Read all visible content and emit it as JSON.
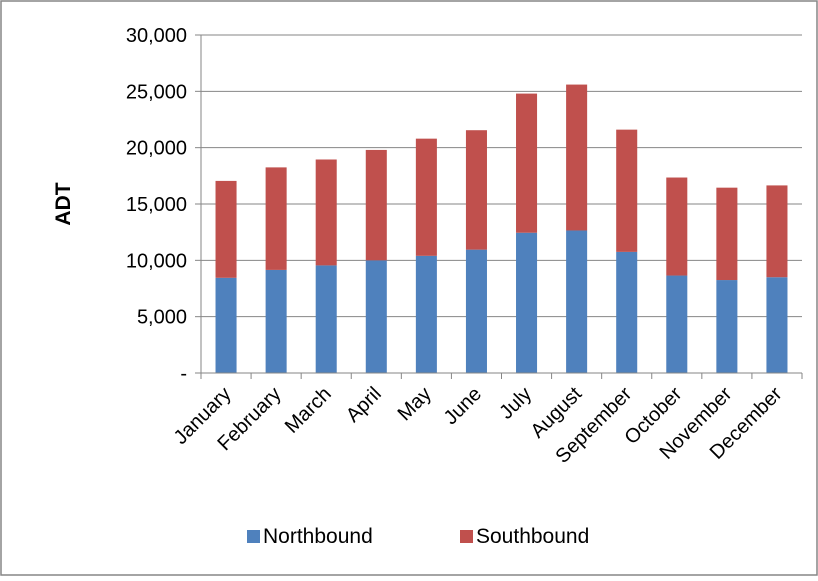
{
  "chart_data": {
    "type": "bar",
    "stacked": true,
    "ylabel": "ADT",
    "xlabel": "",
    "title": "",
    "ylim": [
      0,
      30000
    ],
    "y_ticks": [
      0,
      5000,
      10000,
      15000,
      20000,
      25000,
      30000
    ],
    "y_tick_labels": [
      "-",
      "5,000",
      "10,000",
      "15,000",
      "20,000",
      "25,000",
      "30,000"
    ],
    "grid": "horizontal",
    "legend_position": "bottom",
    "categories": [
      "January",
      "February",
      "March",
      "April",
      "May",
      "June",
      "July",
      "August",
      "September",
      "October",
      "November",
      "December"
    ],
    "series": [
      {
        "name": "Northbound",
        "color": "#4F81BD",
        "values": [
          8450,
          9150,
          9550,
          10000,
          10400,
          10950,
          12450,
          12650,
          10750,
          8650,
          8250,
          8500
        ]
      },
      {
        "name": "Southbound",
        "color": "#C0504D",
        "values": [
          8600,
          9100,
          9400,
          9800,
          10400,
          10600,
          12350,
          12950,
          10850,
          8700,
          8200,
          8150
        ]
      }
    ]
  }
}
